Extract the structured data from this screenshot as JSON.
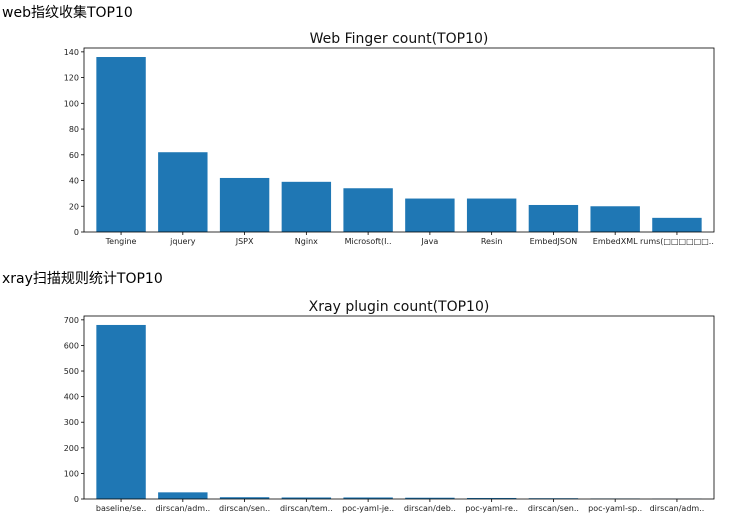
{
  "headings": {
    "finger": "web指纹收集TOP10",
    "xray": "xray扫描规则统计TOP10"
  },
  "chart_data": [
    {
      "type": "bar",
      "title": "Web Finger count(TOP10)",
      "xlabel": "",
      "ylabel": "",
      "categories": [
        "Tengine",
        "jquery",
        "JSPX",
        "Nginx",
        "Microsoft(I..",
        "Java",
        "Resin",
        "EmbedJSON",
        "EmbedXML",
        "rums(□□□□□□.."
      ],
      "values": [
        136,
        62,
        42,
        39,
        34,
        26,
        26,
        21,
        20,
        11
      ],
      "ylim": [
        0,
        143
      ],
      "yticks": [
        0,
        20,
        40,
        60,
        80,
        100,
        120,
        140
      ],
      "bar_color": "#1f77b4",
      "grid": false
    },
    {
      "type": "bar",
      "title": "Xray plugin count(TOP10)",
      "xlabel": "",
      "ylabel": "",
      "categories": [
        "baseline/se..",
        "dirscan/adm..",
        "dirscan/sen..",
        "dirscan/tem..",
        "poc-yaml-je..",
        "dirscan/deb..",
        "poc-yaml-re..",
        "dirscan/sen..",
        "poc-yaml-sp..",
        "dirscan/adm.."
      ],
      "values": [
        680,
        26,
        7,
        6,
        6,
        5,
        4,
        3,
        2,
        1
      ],
      "ylim": [
        0,
        715
      ],
      "yticks": [
        0,
        100,
        200,
        300,
        400,
        500,
        600,
        700
      ],
      "bar_color": "#1f77b4",
      "grid": false
    }
  ]
}
